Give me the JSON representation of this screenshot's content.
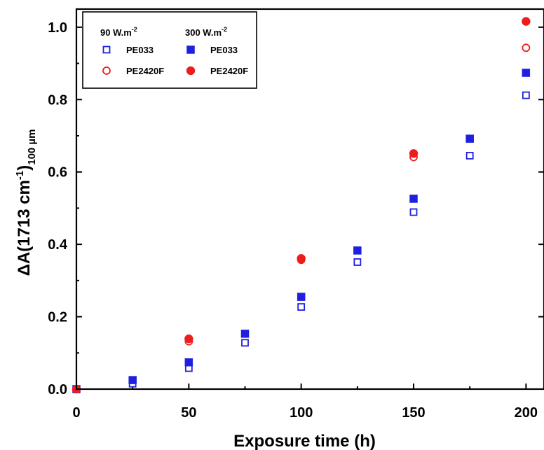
{
  "chart_data": {
    "type": "scatter",
    "title": "",
    "xlabel": "Exposure time (h)",
    "ylabel": {
      "prefix": "ΔA(1713 cm",
      "superscript": "-1",
      "close": ")",
      "subscript": "100 µm"
    },
    "xlim": [
      0,
      208
    ],
    "ylim": [
      0,
      1.05
    ],
    "x_ticks": [
      0,
      50,
      100,
      150,
      200
    ],
    "x_tick_labels": [
      "0",
      "50",
      "100",
      "150",
      "200"
    ],
    "y_ticks": [
      0.0,
      0.2,
      0.4,
      0.6,
      0.8,
      1.0
    ],
    "y_tick_labels": [
      "0.0",
      "0.2",
      "0.4",
      "0.6",
      "0.8",
      "1.0"
    ],
    "grid": false,
    "legend": {
      "placement": "top-left",
      "group_headers": [
        {
          "base": "90 W.m",
          "sup": "-2"
        },
        {
          "base": "300 W.m",
          "sup": "-2"
        }
      ]
    },
    "series": [
      {
        "name": "PE033",
        "group": "90 W.m-2",
        "marker": "square-open",
        "color": "#1f1fe0",
        "points": [
          [
            0,
            0.0
          ],
          [
            25,
            0.015
          ],
          [
            50,
            0.058
          ],
          [
            75,
            0.128
          ],
          [
            100,
            0.227
          ],
          [
            125,
            0.351
          ],
          [
            150,
            0.489
          ],
          [
            175,
            0.645
          ],
          [
            200,
            0.812
          ]
        ]
      },
      {
        "name": "PE2420F",
        "group": "90 W.m-2",
        "marker": "circle-open",
        "color": "#ee1c1c",
        "points": [
          [
            0,
            0.0
          ],
          [
            50,
            0.132
          ],
          [
            100,
            0.357
          ],
          [
            150,
            0.641
          ],
          [
            200,
            0.943
          ]
        ]
      },
      {
        "name": "PE033",
        "group": "300 W.m-2",
        "marker": "square-filled",
        "color": "#1f1fe0",
        "points": [
          [
            0,
            0.0
          ],
          [
            25,
            0.025
          ],
          [
            50,
            0.074
          ],
          [
            75,
            0.153
          ],
          [
            100,
            0.255
          ],
          [
            125,
            0.383
          ],
          [
            150,
            0.526
          ],
          [
            175,
            0.692
          ],
          [
            200,
            0.874
          ]
        ]
      },
      {
        "name": "PE2420F",
        "group": "300 W.m-2",
        "marker": "circle-filled",
        "color": "#ee1c1c",
        "points": [
          [
            0,
            0.0
          ],
          [
            50,
            0.139
          ],
          [
            100,
            0.361
          ],
          [
            150,
            0.651
          ],
          [
            200,
            1.016
          ]
        ]
      }
    ]
  }
}
